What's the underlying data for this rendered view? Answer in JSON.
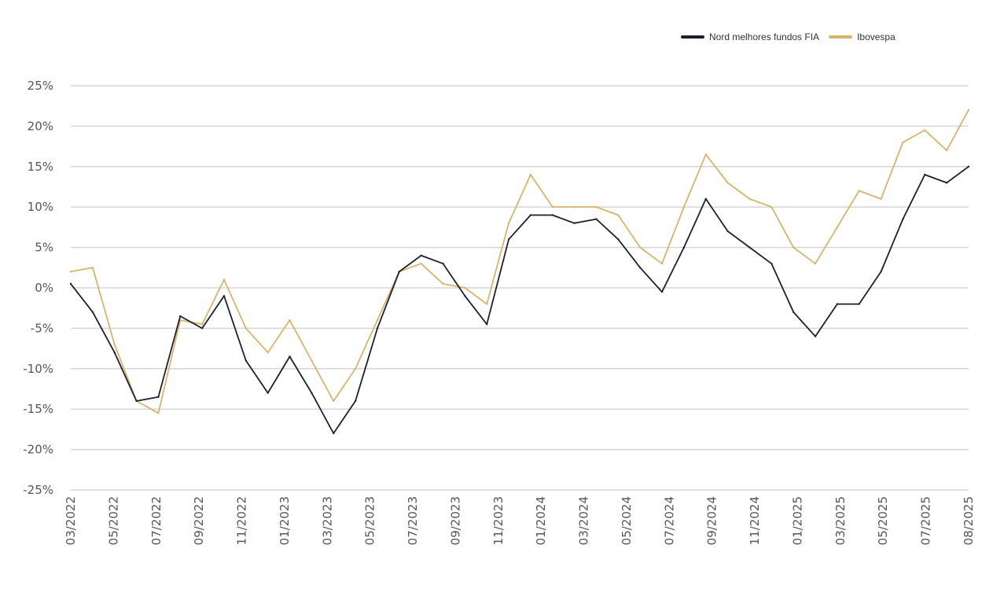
{
  "chart_data": {
    "type": "line",
    "title": "",
    "xlabel": "",
    "ylabel": "",
    "ylim": [
      -25,
      25
    ],
    "y_ticks": [
      "25%",
      "20%",
      "15%",
      "10%",
      "5%",
      "0%",
      "-5%",
      "-10%",
      "-15%",
      "-20%",
      "-25%"
    ],
    "y_tick_values": [
      25,
      20,
      15,
      10,
      5,
      0,
      -5,
      -10,
      -15,
      -20,
      -25
    ],
    "x_ticks": [
      "03/2022",
      "05/2022",
      "07/2022",
      "09/2022",
      "11/2022",
      "01/2023",
      "03/2023",
      "05/2023",
      "07/2023",
      "09/2023",
      "11/2023",
      "01/2024",
      "03/2024",
      "05/2024",
      "07/2024",
      "09/2024",
      "11/2024",
      "01/2025",
      "03/2025",
      "05/2025",
      "07/2025",
      "08/2025"
    ],
    "grid": true,
    "legend_position": "top-right",
    "x": [
      "03/2022",
      "04/2022",
      "05/2022",
      "06/2022",
      "07/2022",
      "08/2022",
      "09/2022",
      "10/2022",
      "11/2022",
      "12/2022",
      "01/2023",
      "02/2023",
      "03/2023",
      "04/2023",
      "05/2023",
      "06/2023",
      "07/2023",
      "08/2023",
      "09/2023",
      "10/2023",
      "11/2023",
      "12/2023",
      "01/2024",
      "02/2024",
      "03/2024",
      "04/2024",
      "05/2024",
      "06/2024",
      "07/2024",
      "08/2024",
      "09/2024",
      "10/2024",
      "11/2024",
      "12/2024",
      "01/2025",
      "02/2025",
      "03/2025",
      "04/2025",
      "05/2025",
      "06/2025",
      "07/2025",
      "08/2025"
    ],
    "series": [
      {
        "name": "Nord melhores fundos FIA",
        "color": "#1c2030",
        "values": [
          0.5,
          -3.0,
          -8.0,
          -14.0,
          -13.5,
          -3.5,
          -5.0,
          -1.0,
          -9.0,
          -13.0,
          -8.5,
          -13.0,
          -18.0,
          -14.0,
          -5.0,
          2.0,
          4.0,
          3.0,
          -1.0,
          -4.5,
          6.0,
          9.0,
          9.0,
          8.0,
          8.5,
          6.0,
          2.5,
          -0.5,
          5.0,
          11.0,
          7.0,
          5.0,
          3.0,
          -3.0,
          -6.0,
          -2.0,
          -2.0,
          2.0,
          8.5,
          14.0,
          13.0,
          15.0
        ]
      },
      {
        "name": "Ibovespa",
        "color": "#d8b46a",
        "values": [
          2.0,
          2.5,
          -7.0,
          -14.0,
          -15.5,
          -4.0,
          -4.5,
          1.0,
          -5.0,
          -8.0,
          -4.0,
          -9.0,
          -14.0,
          -10.0,
          -4.0,
          2.0,
          3.0,
          0.5,
          0.0,
          -2.0,
          8.0,
          14.0,
          10.0,
          10.0,
          10.0,
          9.0,
          5.0,
          3.0,
          10.0,
          16.5,
          13.0,
          11.0,
          10.0,
          5.0,
          3.0,
          7.5,
          12.0,
          11.0,
          18.0,
          19.5,
          17.0,
          22.0
        ]
      }
    ]
  }
}
